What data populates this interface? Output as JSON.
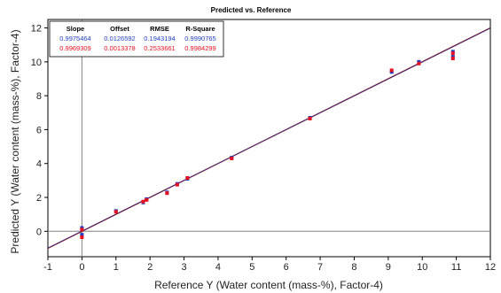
{
  "chart_data": {
    "type": "scatter",
    "title": "Predicted vs. Reference",
    "xlabel": "Reference Y (Water content (mass-%), Factor-4)",
    "ylabel": "Predicted Y (Water content (mass-%), Factor-4)",
    "xlim": [
      -1,
      12
    ],
    "ylim": [
      -1.5,
      12.5
    ],
    "xticks": [
      "-1",
      "0",
      "1",
      "2",
      "3",
      "4",
      "5",
      "6",
      "7",
      "8",
      "9",
      "10",
      "11",
      "12"
    ],
    "yticks": [
      "0",
      "2",
      "4",
      "6",
      "8",
      "10",
      "12"
    ],
    "grid": false,
    "colors": {
      "calibration": "#1f3fbf",
      "validation": "#e8101e",
      "fit": "#8b0000",
      "axis": "#808080"
    },
    "stats_table": {
      "headers": [
        "Slope",
        "Offset",
        "RMSE",
        "R-Square"
      ],
      "rows": [
        {
          "color": "#1f3fbf",
          "values": [
            "0.9975464",
            "0.0126592",
            "0.1943194",
            "0.9990765"
          ]
        },
        {
          "color": "#e8101e",
          "values": [
            "0.9969309",
            "0.0013378",
            "0.2533661",
            "0.9984299"
          ]
        }
      ]
    },
    "series": [
      {
        "color": "#1f3fbf",
        "points": [
          [
            0,
            0.2
          ],
          [
            0,
            -0.2
          ],
          [
            1.0,
            1.2
          ],
          [
            1.8,
            1.7
          ],
          [
            1.9,
            1.9
          ],
          [
            2.5,
            2.3
          ],
          [
            2.8,
            2.8
          ],
          [
            3.1,
            3.1
          ],
          [
            4.4,
            4.35
          ],
          [
            6.7,
            6.7
          ],
          [
            9.1,
            9.4
          ],
          [
            9.9,
            10.0
          ],
          [
            10.9,
            10.6
          ],
          [
            10.9,
            10.3
          ]
        ]
      },
      {
        "color": "#e8101e",
        "points": [
          [
            0,
            0.1
          ],
          [
            0,
            -0.35
          ],
          [
            1.0,
            1.15
          ],
          [
            1.8,
            1.75
          ],
          [
            1.9,
            1.85
          ],
          [
            2.5,
            2.25
          ],
          [
            2.8,
            2.75
          ],
          [
            3.1,
            3.15
          ],
          [
            4.4,
            4.3
          ],
          [
            6.7,
            6.65
          ],
          [
            9.1,
            9.5
          ],
          [
            9.9,
            9.9
          ],
          [
            10.9,
            10.5
          ],
          [
            10.9,
            10.2
          ]
        ]
      }
    ],
    "fit_line": {
      "slope": 0.9975464,
      "offset": 0.0126592,
      "x_range": [
        -1,
        12
      ]
    }
  }
}
